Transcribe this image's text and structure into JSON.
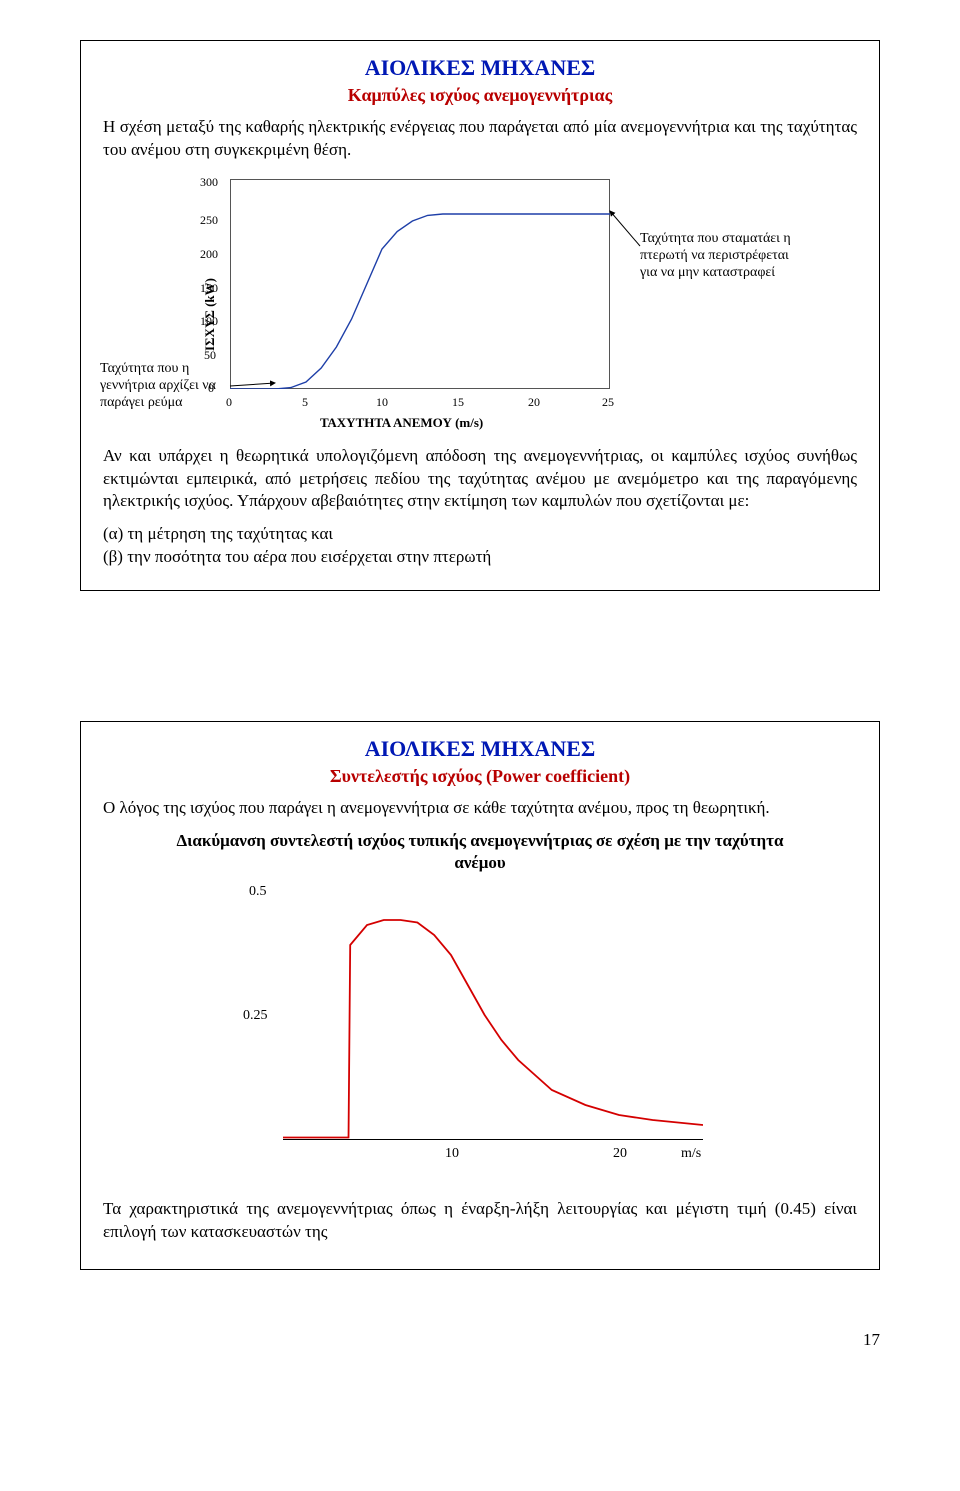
{
  "page": {
    "number": "17"
  },
  "panel1": {
    "title": "ΑΙΟΛΙΚΕΣ ΜΗΧΑΝΕΣ",
    "subtitle": "Καμπύλες ισχύος ανεμογεννήτριας",
    "intro": "Η σχέση μεταξύ της καθαρής ηλεκτρικής ενέργειας που παράγεται από μία ανεμογεννήτρια και της ταχύτητας του ανέμου στη συγκεκριμένη θέση.",
    "after": "Αν και υπάρχει η θεωρητικά υπολογιζόμενη απόδοση της ανεμογεννήτριας, οι καμπύλες ισχύος συνήθως εκτιμώνται εμπειρικά, από μετρήσεις πεδίου της ταχύτητας ανέμου με ανεμόμετρο και της παραγόμενης ηλεκτρικής ισχύος. Υπάρχουν αβεβαιότητες στην εκτίμηση των καμπυλών που σχετίζονται με:",
    "bullet_a": "(α) τη μέτρηση της ταχύτητας και",
    "bullet_b": "(β) την ποσότητα του αέρα που εισέρχεται στην πτερωτή",
    "chart": {
      "type": "line",
      "y_label": "ΙΣΧΥΣ (kW)",
      "x_label": "ΤΑΧΥΤΗΤΑ ΑΝΕΜΟΥ (m/s)",
      "y_ticks": [
        "0",
        "50",
        "100",
        "150",
        "200",
        "250",
        "300"
      ],
      "x_ticks": [
        "0",
        "5",
        "10",
        "15",
        "20",
        "25"
      ],
      "xlim": [
        0,
        25
      ],
      "ylim": [
        0,
        300
      ],
      "line_color": "#1e3fa8",
      "line_width": 1.4,
      "plot_border_color": "#555555",
      "background_color": "#ffffff",
      "data_x": [
        0,
        3,
        4,
        5,
        6,
        7,
        8,
        9,
        10,
        11,
        12,
        13,
        14,
        15,
        16,
        18,
        20,
        22,
        24,
        25
      ],
      "data_y": [
        0,
        0,
        2,
        10,
        30,
        60,
        100,
        150,
        200,
        225,
        240,
        248,
        250,
        250,
        250,
        250,
        250,
        250,
        250,
        250
      ],
      "annot_left": "Ταχύτητα που η γεννήτρια αρχίζει να παράγει ρεύμα",
      "annot_right": "Ταχύτητα που σταματάει η πτερωτή να περιστρέφεται για να μην καταστραφεί"
    }
  },
  "panel2": {
    "title": "ΑΙΟΛΙΚΕΣ ΜΗΧΑΝΕΣ",
    "subtitle": "Συντελεστής ισχύος (Power coefficient)",
    "intro": "Ο λόγος της ισχύος που παράγει η ανεμογεννήτρια σε κάθε ταχύτητα ανέμου, προς τη θεωρητική.",
    "chart_title": "Διακύμανση συντελεστή ισχύος τυπικής ανεμογεννήτριας  σε σχέση με την ταχύτητα ανέμου",
    "chart": {
      "type": "line",
      "y_ticks": [
        "0.5",
        "0.25"
      ],
      "x_ticks": [
        "10",
        "20",
        "m/s"
      ],
      "xlim": [
        0,
        25
      ],
      "ylim": [
        0,
        0.5
      ],
      "line_color": "#d40000",
      "line_width": 1.8,
      "data_x": [
        0,
        3.9,
        4,
        5,
        6,
        7,
        8,
        9,
        10,
        11,
        12,
        13,
        14,
        16,
        18,
        20,
        22,
        25
      ],
      "data_y": [
        0.005,
        0.005,
        0.39,
        0.43,
        0.44,
        0.44,
        0.435,
        0.41,
        0.37,
        0.31,
        0.25,
        0.2,
        0.16,
        0.1,
        0.07,
        0.05,
        0.04,
        0.03
      ]
    },
    "after": "Τα χαρακτηριστικά της ανεμογεννήτριας όπως η έναρξη-λήξη λειτουργίας και μέγιστη τιμή (0.45) είναι επιλογή των κατασκευαστών της"
  }
}
